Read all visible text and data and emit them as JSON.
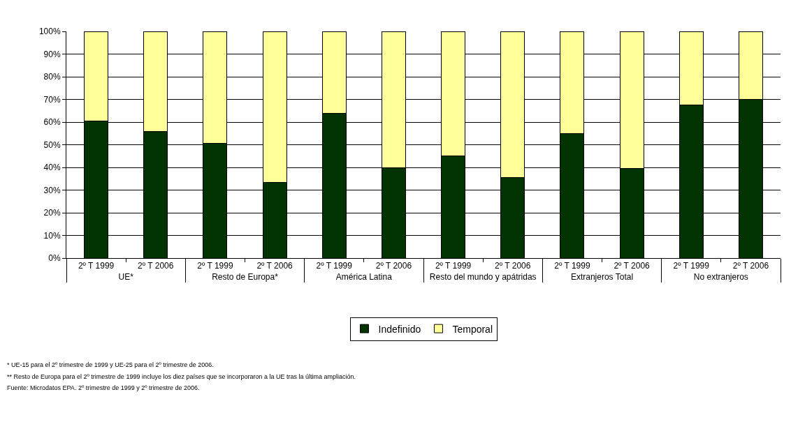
{
  "chart_data": {
    "type": "bar",
    "stacked": true,
    "categories": [
      "2º T 1999",
      "2º T 2006",
      "2º T 1999",
      "2º T 2006",
      "2º T 1999",
      "2º T 2006",
      "2º T 1999",
      "2º T 2006",
      "2º T 1999",
      "2º T 2006",
      "2º T 1999",
      "2º T 2006"
    ],
    "series": [
      {
        "name": "Indefinido",
        "color": "#003300",
        "values": [
          60.5,
          56,
          50.5,
          33.5,
          64,
          40,
          45,
          35.5,
          55,
          39.5,
          67.5,
          70
        ]
      },
      {
        "name": "Temporal",
        "color": "#ffff99",
        "values": [
          39.5,
          44,
          49.5,
          66.5,
          36,
          60,
          55,
          64.5,
          45,
          60.5,
          32.5,
          30
        ]
      }
    ],
    "ylim": [
      0,
      100
    ],
    "yticks": [
      {
        "value": 0,
        "label": "0%"
      },
      {
        "value": 10,
        "label": "10%"
      },
      {
        "value": 20,
        "label": "20%"
      },
      {
        "value": 30,
        "label": "30%"
      },
      {
        "value": 40,
        "label": "40%"
      },
      {
        "value": 50,
        "label": "50%"
      },
      {
        "value": 60,
        "label": "60%"
      },
      {
        "value": 70,
        "label": "70%"
      },
      {
        "value": 80,
        "label": "80%"
      },
      {
        "value": 90,
        "label": "90%"
      },
      {
        "value": 100,
        "label": "100%"
      }
    ],
    "grid": "y",
    "legend": "bottom",
    "annotations": [
      "UE*",
      "Resto de Europa*",
      "América Latina",
      "Resto del mundo y apátridas",
      "Extranjeros Total",
      "No extranjeros",
      "* UE-15 para el 2º trimestre de 1999 y UE-25 para el 2º trimestre de 2006.",
      "** Resto de Europa para el 2º trimestre de 1999 incluye los diez países que se incorporaron a la UE tras la última ampliación.",
      "Fuente: Microdatos EPA. 2º trimestre de 1999 y 2º trimestre de 2006."
    ]
  }
}
